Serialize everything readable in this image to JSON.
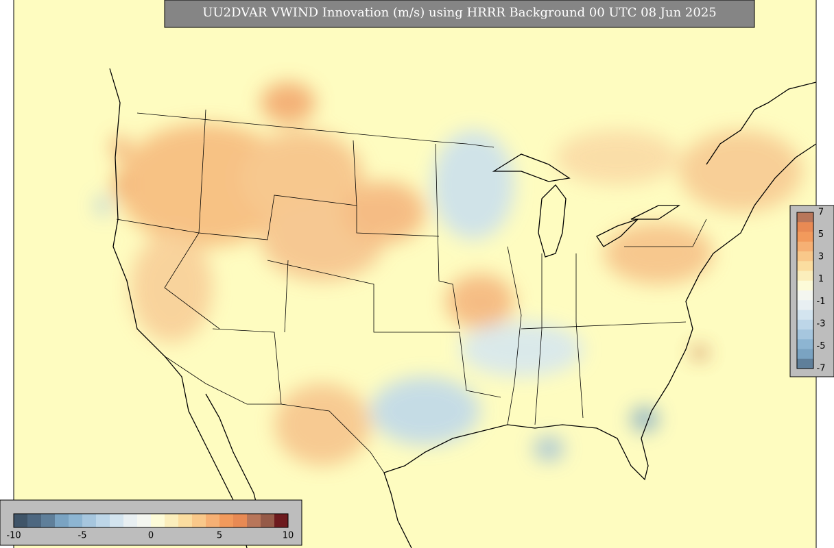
{
  "header": {
    "title": "UU2DVAR VWIND Innovation (m/s) using HRRR Background 00 UTC 08 Jun 2025"
  },
  "colorbar_bottom": {
    "ticks": [
      -10,
      -5,
      0,
      5,
      10
    ]
  },
  "colorbar_right": {
    "ticks": [
      7,
      5,
      3,
      1,
      -1,
      -3,
      -5,
      -7
    ]
  }
}
